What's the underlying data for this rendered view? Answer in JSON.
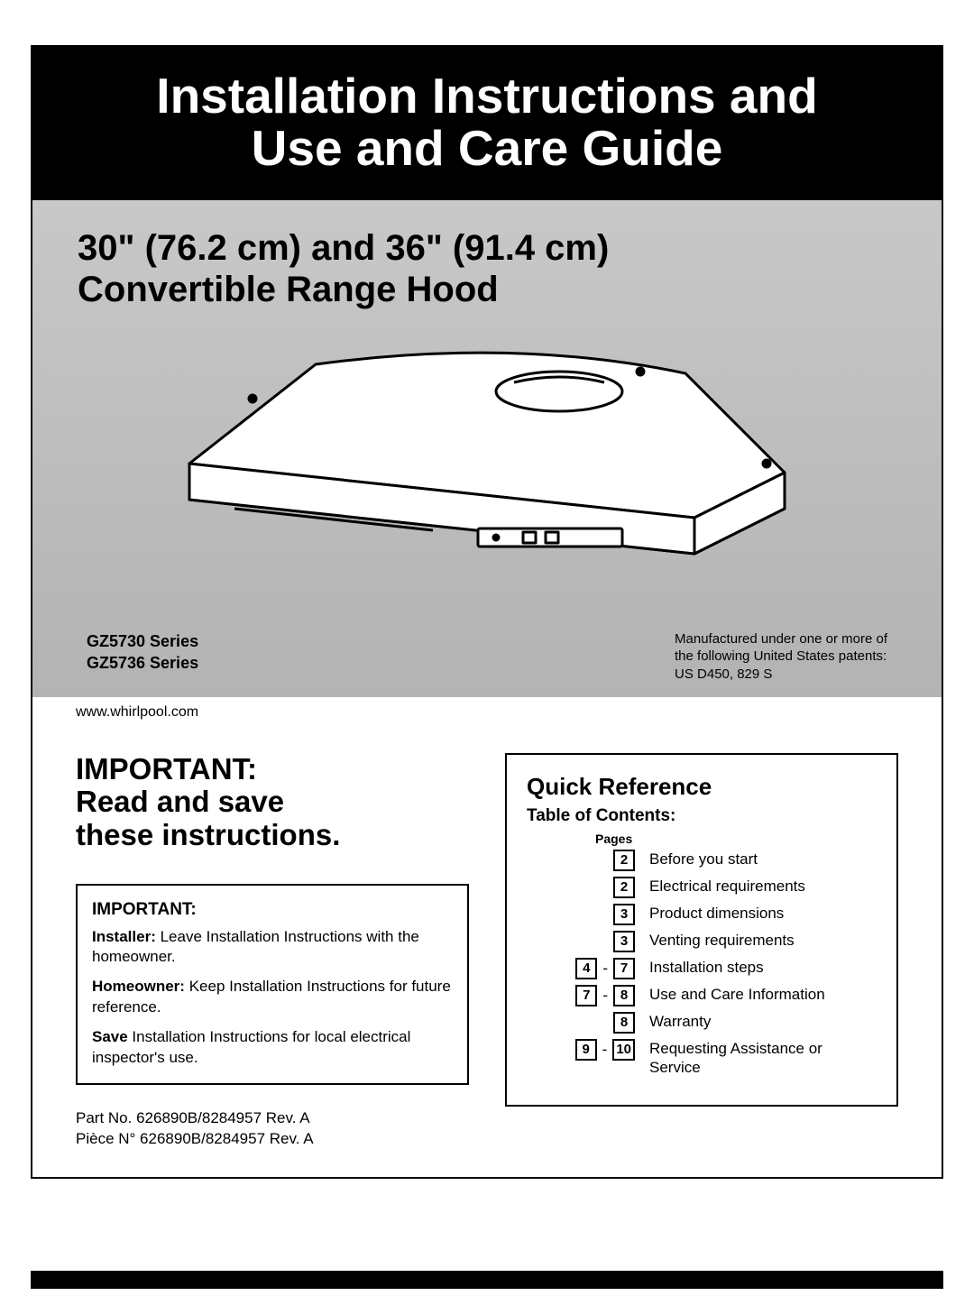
{
  "title": {
    "line1": "Installation Instructions and",
    "line2": "Use and Care Guide",
    "fontsize": 55,
    "color": "#ffffff",
    "background": "#000000"
  },
  "subtitle": {
    "line1": "30\" (76.2 cm) and 36\" (91.4 cm)",
    "line2": "Convertible Range Hood",
    "fontsize": 40
  },
  "series": {
    "line1": "GZ5730 Series",
    "line2": "GZ5736 Series"
  },
  "patent": {
    "line1": "Manufactured under one or more of",
    "line2": "the following United States patents:",
    "line3": "US D450, 829 S"
  },
  "url": "www.whirlpool.com",
  "important_heading": {
    "line1": "IMPORTANT:",
    "line2": "Read and save",
    "line3": "these instructions.",
    "fontsize": 33
  },
  "important_box": {
    "label": "IMPORTANT:",
    "installer_bold": "Installer:",
    "installer_text": " Leave Installation Instructions with the homeowner.",
    "homeowner_bold": "Homeowner:",
    "homeowner_text": " Keep Installation Instructions for future reference.",
    "save_bold": "Save",
    "save_text": " Installation Instructions for local electrical inspector's use."
  },
  "partnos": {
    "line1": "Part No. 626890B/8284957 Rev. A",
    "line2": "Pièce N° 626890B/8284957 Rev. A"
  },
  "quick_reference": {
    "title": "Quick Reference",
    "toc_title": "Table of Contents:",
    "pages_label": "Pages",
    "items": [
      {
        "pages": [
          "2"
        ],
        "text": "Before you start"
      },
      {
        "pages": [
          "2"
        ],
        "text": "Electrical requirements"
      },
      {
        "pages": [
          "3"
        ],
        "text": "Product dimensions"
      },
      {
        "pages": [
          "3"
        ],
        "text": "Venting requirements"
      },
      {
        "pages": [
          "4",
          "7"
        ],
        "text": "Installation steps"
      },
      {
        "pages": [
          "7",
          "8"
        ],
        "text": "Use and Care Information"
      },
      {
        "pages": [
          "8"
        ],
        "text": "Warranty"
      },
      {
        "pages": [
          "9",
          "10"
        ],
        "text": "Requesting Assistance or Service"
      }
    ]
  },
  "colors": {
    "page_gray": "#bdbdbd",
    "black": "#000000",
    "white": "#ffffff"
  }
}
